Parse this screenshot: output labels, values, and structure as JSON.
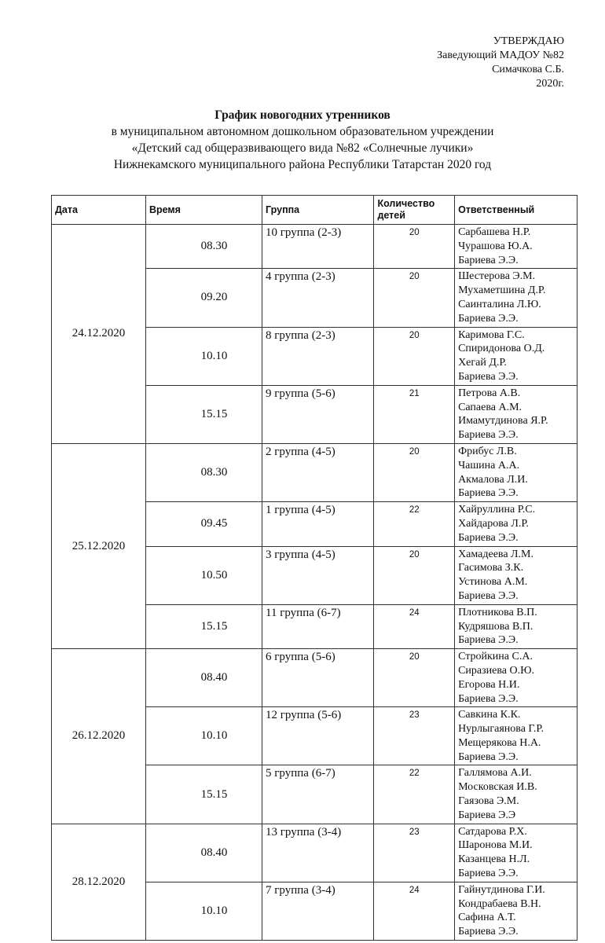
{
  "approval": {
    "heading": "УТВЕРЖДАЮ",
    "position": "Заведующий МАДОУ №82",
    "name": "Симачкова С.Б.",
    "date": "2020г."
  },
  "header": {
    "title": "График новогодних утренников",
    "lines": [
      "в муниципальном автономном дошкольном образовательном учреждении",
      "«Детский сад общеразвивающего вида №82 «Солнечные лучики»",
      "Нижнекамского муниципального района Республики Татарстан 2020 год"
    ]
  },
  "table": {
    "columns": [
      "Дата",
      "Время",
      "Группа",
      "Количество детей",
      "Ответственный"
    ],
    "days": [
      {
        "date": "24.12.2020",
        "sessions": [
          {
            "time": "08.30",
            "group": "10 группа (2-3)",
            "count": 20,
            "staff": [
              "Сарбашева Н.Р.",
              "Чурашова Ю.А.",
              "Бариева Э.Э."
            ]
          },
          {
            "time": "09.20",
            "group": "4 группа (2-3)",
            "count": 20,
            "staff": [
              "Шестерова Э.М.",
              "Мухаметшина Д.Р.",
              "Саинталина Л.Ю.",
              "Бариева Э.Э."
            ]
          },
          {
            "time": "10.10",
            "group": "8 группа (2-3)",
            "count": 20,
            "staff": [
              "Каримова Г.С.",
              "Спиридонова О.Д.",
              "Хегай Д.Р.",
              "Бариева Э.Э."
            ]
          },
          {
            "time": "15.15",
            "group": "9 группа (5-6)",
            "count": 21,
            "staff": [
              "Петрова А.В.",
              "Сапаева А.М.",
              "Имамутдинова Я.Р.",
              "Бариева Э.Э."
            ]
          }
        ]
      },
      {
        "date": "25.12.2020",
        "sessions": [
          {
            "time": "08.30",
            "group": "2 группа (4-5)",
            "count": 20,
            "staff": [
              "Фрибус Л.В.",
              "Чашина А.А.",
              "Акмалова Л.И.",
              "Бариева Э.Э."
            ]
          },
          {
            "time": "09.45",
            "group": "1 группа (4-5)",
            "count": 22,
            "staff": [
              "Хайруллина Р.С.",
              "Хайдарова Л.Р.",
              "Бариева Э.Э."
            ]
          },
          {
            "time": "10.50",
            "group": "3 группа (4-5)",
            "count": 20,
            "staff": [
              "Хамадеева Л.М.",
              "Гасимова З.К.",
              "Устинова А.М.",
              "Бариева Э.Э."
            ]
          },
          {
            "time": "15.15",
            "group": "11 группа (6-7)",
            "count": 24,
            "staff": [
              "Плотникова В.П.",
              "Кудряшова В.П.",
              "Бариева Э.Э."
            ]
          }
        ]
      },
      {
        "date": "26.12.2020",
        "sessions": [
          {
            "time": "08.40",
            "group": "6 группа (5-6)",
            "count": 20,
            "staff": [
              "Стройкина С.А.",
              "Сиразиева О.Ю.",
              "Егорова Н.И.",
              "Бариева Э.Э."
            ]
          },
          {
            "time": "10.10",
            "group": "12 группа (5-6)",
            "count": 23,
            "staff": [
              "Савкина К.К.",
              "Нурлыгаянова Г.Р.",
              "Мещерякова Н.А.",
              "Бариева Э.Э."
            ]
          },
          {
            "time": "15.15",
            "group": "5 группа (6-7)",
            "count": 22,
            "staff": [
              "Галлямова А.И.",
              "Московская И.В.",
              "Гаязова Э.М.",
              "Бариева Э.Э"
            ]
          }
        ]
      },
      {
        "date": "28.12.2020",
        "sessions": [
          {
            "time": "08.40",
            "group": "13 группа (3-4)",
            "count": 23,
            "staff": [
              "Сатдарова Р.Х.",
              "Шаронова М.И.",
              "Казанцева Н.Л.",
              "Бариева Э.Э."
            ]
          },
          {
            "time": "10.10",
            "group": "7 группа (3-4)",
            "count": 24,
            "staff": [
              "Гайнутдинова Г.И.",
              "Кондрабаева В.Н.",
              "Сафина А.Т.",
              "Бариева Э.Э."
            ]
          }
        ]
      }
    ]
  }
}
